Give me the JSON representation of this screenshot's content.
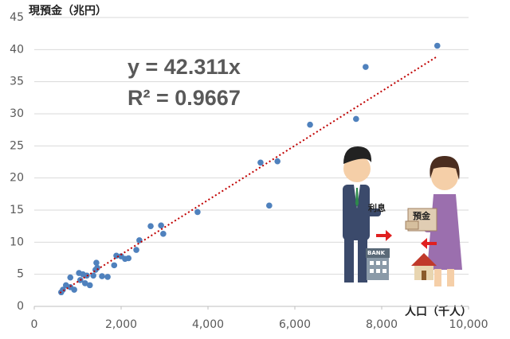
{
  "chart_data": {
    "type": "scatter",
    "y_label": "現預金（兆円）",
    "x_label": "人口（千人）",
    "annotations": [
      "y = 42.311x",
      "R² = 0.9667"
    ],
    "illustration_labels": [
      "利息",
      "預金",
      "BANK"
    ],
    "color": "#4f81bd",
    "grid": true,
    "xlim": [
      0,
      10000
    ],
    "ylim": [
      0,
      45
    ],
    "xticks": [
      0,
      {
        "value": 2000,
        "label": "2,000"
      },
      {
        "value": 4000,
        "label": "4,000"
      },
      {
        "value": 6000,
        "label": "6,000"
      },
      {
        "value": 8000,
        "label": "8,000"
      },
      {
        "value": 10000,
        "label": "10,000"
      }
    ],
    "yticks": [
      0,
      5,
      10,
      15,
      20,
      25,
      30,
      35,
      40,
      45
    ],
    "x": [
      9280,
      7630,
      7410,
      6350,
      5600,
      5210,
      5410,
      3760,
      2680,
      2920,
      2970,
      2420,
      2350,
      2090,
      2170,
      2000,
      1890,
      1840,
      1690,
      1450,
      1430,
      1410,
      1360,
      1210,
      1030,
      1120,
      1170,
      1060,
      830,
      830,
      920,
      660,
      620,
      730,
      1280,
      1560
    ],
    "y": [
      40.6,
      37.3,
      29.2,
      28.3,
      22.6,
      22.4,
      15.7,
      14.7,
      12.5,
      12.6,
      11.3,
      10.3,
      8.8,
      7.4,
      7.5,
      7.8,
      7.9,
      6.4,
      4.6,
      6.0,
      6.8,
      5.7,
      4.8,
      4.8,
      5.2,
      5.0,
      3.6,
      4.1,
      4.5,
      3.0,
      2.6,
      2.6,
      2.2,
      3.3,
      3.3,
      4.7
    ],
    "trendline": {
      "color": "#c00000",
      "x": [
        590,
        9270
      ],
      "y": [
        2.1,
        38.9
      ]
    }
  }
}
